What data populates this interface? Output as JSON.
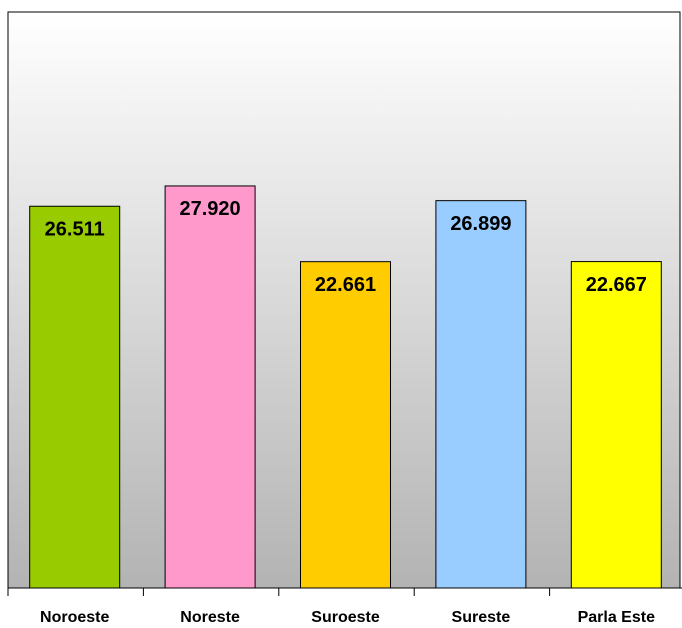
{
  "chart_data": {
    "type": "bar",
    "categories": [
      "Noroeste",
      "Noreste",
      "Suroeste",
      "Sureste",
      "Parla Este"
    ],
    "values": [
      26511,
      27920,
      22661,
      26899,
      22667
    ],
    "value_labels": [
      "26.511",
      "27.920",
      "22.661",
      "26.899",
      "22.667"
    ],
    "colors": [
      "#99cc00",
      "#ff99cc",
      "#ffcc00",
      "#99ccff",
      "#ffff00"
    ],
    "ylim": [
      0,
      40000
    ]
  }
}
